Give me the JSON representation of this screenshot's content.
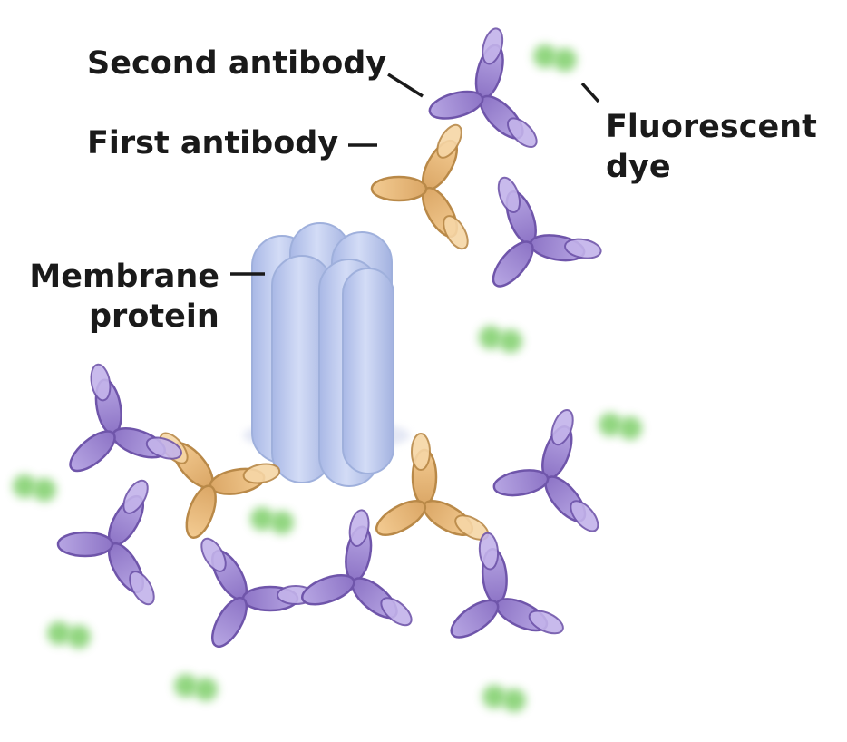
{
  "labels": {
    "second_antibody": "Second antibody",
    "first_antibody": "First antibody",
    "membrane_protein_line1": "Membrane",
    "membrane_protein_line2": "protein",
    "fluorescent_dye_line1": "Fluorescent",
    "fluorescent_dye_line2": "dye"
  },
  "colors": {
    "second_antibody": "#9d86d2",
    "second_antibody_stroke": "#6f55aa",
    "first_antibody": "#e8b878",
    "first_antibody_stroke": "#b98948",
    "membrane_protein": "#bcc8ec",
    "membrane_protein_stroke": "#9fb0dc",
    "fluorescent_dye": "#7fcf6a",
    "leader_line": "#1a1a1a"
  }
}
